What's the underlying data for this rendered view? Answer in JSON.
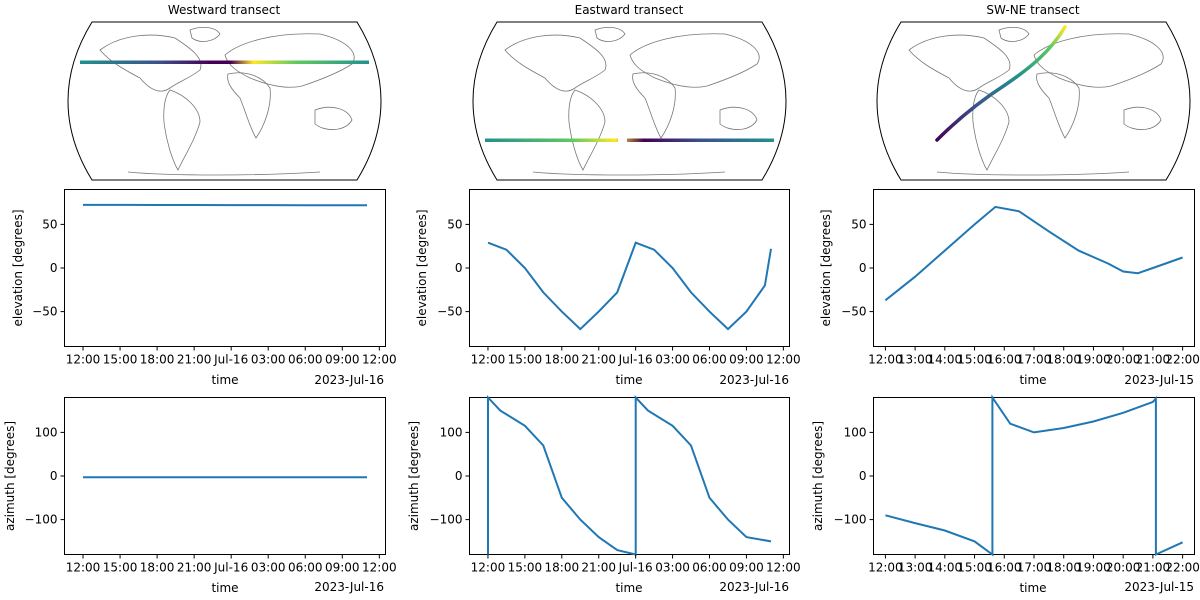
{
  "chart_data": [
    {
      "type": "map",
      "title": "Westward transect",
      "track": {
        "lat": [
          30,
          30
        ],
        "lon": [
          -180,
          180
        ],
        "colormap": "viridis"
      }
    },
    {
      "type": "map",
      "title": "Eastward transect",
      "track": {
        "lat": [
          -30,
          -30
        ],
        "lon": [
          -180,
          180
        ],
        "colormap": "viridis"
      }
    },
    {
      "type": "map",
      "title": "SW-NE transect",
      "track": {
        "lat": [
          -30,
          75
        ],
        "lon": [
          -60,
          22
        ],
        "colormap": "viridis"
      }
    },
    {
      "type": "line",
      "xlabel": "time",
      "ylabel": "elevation [degrees]",
      "x_ticks": [
        "12:00",
        "15:00",
        "18:00",
        "21:00",
        "Jul-16",
        "03:00",
        "06:00",
        "09:00",
        "12:00"
      ],
      "x_offset_label": "2023-Jul-16",
      "y_ticks": [
        "50",
        "0",
        "−50"
      ],
      "ylim": [
        -90,
        90
      ],
      "xlim_hours": [
        -1.5,
        24.5
      ],
      "x_hours": [
        0,
        3,
        6,
        9,
        12,
        15,
        18,
        21,
        23
      ],
      "values": [
        72.3,
        72.3,
        72.2,
        72.2,
        72.1,
        72.1,
        72.0,
        72.0,
        71.9
      ]
    },
    {
      "type": "line",
      "xlabel": "time",
      "ylabel": "elevation [degrees]",
      "x_ticks": [
        "12:00",
        "15:00",
        "18:00",
        "21:00",
        "Jul-16",
        "03:00",
        "06:00",
        "09:00",
        "12:00"
      ],
      "x_offset_label": "2023-Jul-16",
      "y_ticks": [
        "50",
        "0",
        "−50"
      ],
      "ylim": [
        -90,
        90
      ],
      "xlim_hours": [
        -1.5,
        24.5
      ],
      "x_hours": [
        0,
        1.5,
        3,
        4.5,
        6,
        7.5,
        9,
        10.5,
        12,
        13.5,
        15,
        16.5,
        18,
        19.5,
        21,
        22.5,
        23
      ],
      "values": [
        29,
        21,
        0,
        -28,
        -50,
        -70,
        -50,
        -28,
        29,
        21,
        0,
        -28,
        -50,
        -70,
        -50,
        -20,
        22
      ]
    },
    {
      "type": "line",
      "xlabel": "time",
      "ylabel": "elevation [degrees]",
      "x_ticks": [
        "12:00",
        "13:00",
        "14:00",
        "15:00",
        "16:00",
        "17:00",
        "18:00",
        "19:00",
        "20:00",
        "21:00",
        "22:00"
      ],
      "x_offset_label": "2023-Jul-15",
      "y_ticks": [
        "50",
        "0",
        "−50"
      ],
      "ylim": [
        -90,
        90
      ],
      "xlim_hours": [
        -0.4,
        10.4
      ],
      "x_hours": [
        0,
        1,
        2,
        3,
        3.7,
        4.5,
        5.5,
        6.5,
        7.5,
        8,
        8.5,
        9,
        10
      ],
      "values": [
        -37,
        -10,
        20,
        50,
        70,
        65,
        42,
        20,
        5,
        -4,
        -6,
        0,
        12
      ]
    },
    {
      "type": "line",
      "xlabel": "time",
      "ylabel": "azimuth [degrees]",
      "x_ticks": [
        "12:00",
        "15:00",
        "18:00",
        "21:00",
        "Jul-16",
        "03:00",
        "06:00",
        "09:00",
        "12:00"
      ],
      "x_offset_label": "2023-Jul-16",
      "y_ticks": [
        "100",
        "0",
        "−100"
      ],
      "ylim": [
        -180,
        180
      ],
      "xlim_hours": [
        -1.5,
        24.5
      ],
      "x_hours": [
        0,
        23
      ],
      "values": [
        -3,
        -3
      ]
    },
    {
      "type": "line",
      "xlabel": "time",
      "ylabel": "azimuth [degrees]",
      "x_ticks": [
        "12:00",
        "15:00",
        "18:00",
        "21:00",
        "Jul-16",
        "03:00",
        "06:00",
        "09:00",
        "12:00"
      ],
      "x_offset_label": "2023-Jul-16",
      "y_ticks": [
        "100",
        "0",
        "−100"
      ],
      "ylim": [
        -180,
        180
      ],
      "xlim_hours": [
        -1.5,
        24.5
      ],
      "x_hours": [
        0,
        0,
        1,
        3,
        4.5,
        6,
        7.5,
        9,
        10.5,
        12,
        12,
        13,
        15,
        16.5,
        18,
        19.5,
        21,
        23
      ],
      "values": [
        -180,
        180,
        150,
        115,
        70,
        -50,
        -100,
        -140,
        -170,
        -180,
        180,
        150,
        115,
        70,
        -50,
        -100,
        -140,
        -150
      ]
    },
    {
      "type": "line",
      "xlabel": "time",
      "ylabel": "azimuth [degrees]",
      "x_ticks": [
        "12:00",
        "13:00",
        "14:00",
        "15:00",
        "16:00",
        "17:00",
        "18:00",
        "19:00",
        "20:00",
        "21:00",
        "22:00"
      ],
      "x_offset_label": "2023-Jul-15",
      "y_ticks": [
        "100",
        "0",
        "−100"
      ],
      "ylim": [
        -180,
        180
      ],
      "xlim_hours": [
        -0.4,
        10.4
      ],
      "x_hours": [
        0,
        1,
        2,
        3,
        3.6,
        3.6,
        4.2,
        5,
        6,
        7,
        8,
        9,
        9.1,
        9.1,
        10
      ],
      "values": [
        -90,
        -108,
        -125,
        -150,
        -180,
        180,
        120,
        100,
        110,
        125,
        145,
        170,
        178,
        -180,
        -152
      ]
    }
  ]
}
